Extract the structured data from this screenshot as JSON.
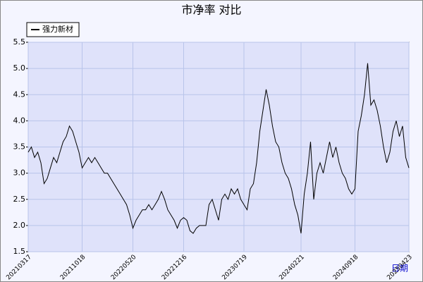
{
  "chart_data": {
    "type": "line",
    "title": "市净率  对比",
    "x_label": "日期",
    "categories": [
      "20210317",
      null,
      null,
      null,
      null,
      null,
      null,
      null,
      null,
      null,
      null,
      null,
      null,
      null,
      null,
      null,
      null,
      "20211018",
      null,
      null,
      null,
      null,
      null,
      null,
      null,
      null,
      null,
      null,
      null,
      null,
      null,
      null,
      null,
      "20220520",
      null,
      null,
      null,
      null,
      null,
      null,
      null,
      null,
      null,
      null,
      null,
      null,
      null,
      null,
      null,
      "20221216",
      null,
      null,
      null,
      null,
      null,
      null,
      null,
      null,
      null,
      null,
      null,
      null,
      null,
      null,
      null,
      null,
      null,
      null,
      "20230719",
      null,
      null,
      null,
      null,
      null,
      null,
      null,
      null,
      null,
      null,
      null,
      null,
      null,
      null,
      null,
      null,
      null,
      "20240221",
      null,
      null,
      null,
      null,
      null,
      null,
      null,
      null,
      null,
      null,
      null,
      null,
      null,
      null,
      null,
      null,
      "20240918",
      null,
      null,
      null,
      null,
      null,
      null,
      null,
      null,
      null,
      null,
      null,
      null,
      null,
      null,
      null,
      null,
      "20250423"
    ],
    "series": [
      {
        "name": "强力新材",
        "color": "#000000",
        "values": [
          3.4,
          3.5,
          3.3,
          3.4,
          3.2,
          2.8,
          2.9,
          3.1,
          3.3,
          3.2,
          3.4,
          3.6,
          3.7,
          3.9,
          3.8,
          3.6,
          3.4,
          3.1,
          3.2,
          3.3,
          3.2,
          3.3,
          3.2,
          3.1,
          3.0,
          3.0,
          2.9,
          2.8,
          2.7,
          2.6,
          2.5,
          2.4,
          2.2,
          1.95,
          2.1,
          2.2,
          2.3,
          2.3,
          2.4,
          2.3,
          2.4,
          2.5,
          2.65,
          2.5,
          2.3,
          2.2,
          2.1,
          1.95,
          2.1,
          2.15,
          2.1,
          1.9,
          1.85,
          1.95,
          2.0,
          2.0,
          2.0,
          2.4,
          2.5,
          2.3,
          2.1,
          2.5,
          2.6,
          2.5,
          2.7,
          2.6,
          2.7,
          2.5,
          2.4,
          2.3,
          2.7,
          2.8,
          3.2,
          3.8,
          4.2,
          4.6,
          4.3,
          3.9,
          3.6,
          3.5,
          3.2,
          3.0,
          2.9,
          2.7,
          2.4,
          2.2,
          1.85,
          2.6,
          3.0,
          3.6,
          2.5,
          3.0,
          3.2,
          3.0,
          3.3,
          3.6,
          3.3,
          3.5,
          3.2,
          3.0,
          2.9,
          2.7,
          2.6,
          2.7,
          3.8,
          4.1,
          4.5,
          5.1,
          4.3,
          4.4,
          4.2,
          3.9,
          3.5,
          3.2,
          3.4,
          3.8,
          4.0,
          3.7,
          3.9,
          3.3,
          3.1
        ]
      }
    ],
    "ylim": [
      1.5,
      5.5
    ],
    "yticks": [
      1.5,
      {
        "value": 2,
        "label": "2.0"
      },
      2.5,
      {
        "value": 3,
        "label": "3.0"
      },
      3.5,
      {
        "value": 4,
        "label": "4.0"
      },
      4.5,
      {
        "value": 5,
        "label": "5.0"
      },
      5.5
    ],
    "grid": true,
    "legend": "top-left"
  }
}
